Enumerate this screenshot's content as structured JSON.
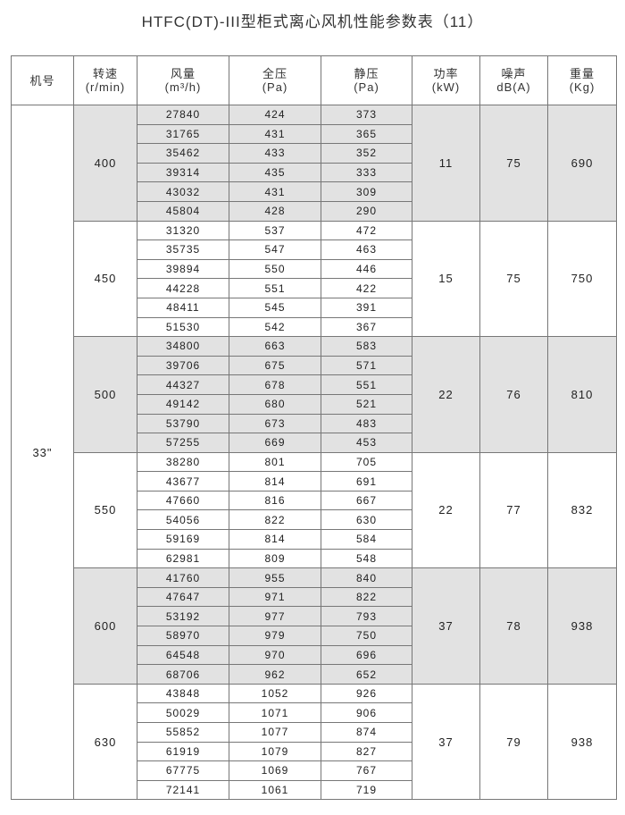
{
  "title": "HTFC(DT)-III型柜式离心风机性能参数表（11）",
  "headers": [
    {
      "l1": "机号",
      "l2": ""
    },
    {
      "l1": "转速",
      "l2": "(r/min)"
    },
    {
      "l1": "风量",
      "l2": "(m³/h)"
    },
    {
      "l1": "全压",
      "l2": "(Pa)"
    },
    {
      "l1": "静压",
      "l2": "(Pa)"
    },
    {
      "l1": "功率",
      "l2": "(kW)"
    },
    {
      "l1": "噪声",
      "l2": "dB(A)"
    },
    {
      "l1": "重量",
      "l2": "(Kg)"
    }
  ],
  "model": "33\"",
  "shade_color": "#e2e2e2",
  "groups": [
    {
      "speed": "400",
      "power": "11",
      "noise": "75",
      "weight": "690",
      "shaded": true,
      "rows": [
        [
          "27840",
          "424",
          "373"
        ],
        [
          "31765",
          "431",
          "365"
        ],
        [
          "35462",
          "433",
          "352"
        ],
        [
          "39314",
          "435",
          "333"
        ],
        [
          "43032",
          "431",
          "309"
        ],
        [
          "45804",
          "428",
          "290"
        ]
      ]
    },
    {
      "speed": "450",
      "power": "15",
      "noise": "75",
      "weight": "750",
      "shaded": false,
      "rows": [
        [
          "31320",
          "537",
          "472"
        ],
        [
          "35735",
          "547",
          "463"
        ],
        [
          "39894",
          "550",
          "446"
        ],
        [
          "44228",
          "551",
          "422"
        ],
        [
          "48411",
          "545",
          "391"
        ],
        [
          "51530",
          "542",
          "367"
        ]
      ]
    },
    {
      "speed": "500",
      "power": "22",
      "noise": "76",
      "weight": "810",
      "shaded": true,
      "rows": [
        [
          "34800",
          "663",
          "583"
        ],
        [
          "39706",
          "675",
          "571"
        ],
        [
          "44327",
          "678",
          "551"
        ],
        [
          "49142",
          "680",
          "521"
        ],
        [
          "53790",
          "673",
          "483"
        ],
        [
          "57255",
          "669",
          "453"
        ]
      ]
    },
    {
      "speed": "550",
      "power": "22",
      "noise": "77",
      "weight": "832",
      "shaded": false,
      "rows": [
        [
          "38280",
          "801",
          "705"
        ],
        [
          "43677",
          "814",
          "691"
        ],
        [
          "47660",
          "816",
          "667"
        ],
        [
          "54056",
          "822",
          "630"
        ],
        [
          "59169",
          "814",
          "584"
        ],
        [
          "62981",
          "809",
          "548"
        ]
      ]
    },
    {
      "speed": "600",
      "power": "37",
      "noise": "78",
      "weight": "938",
      "shaded": true,
      "rows": [
        [
          "41760",
          "955",
          "840"
        ],
        [
          "47647",
          "971",
          "822"
        ],
        [
          "53192",
          "977",
          "793"
        ],
        [
          "58970",
          "979",
          "750"
        ],
        [
          "64548",
          "970",
          "696"
        ],
        [
          "68706",
          "962",
          "652"
        ]
      ]
    },
    {
      "speed": "630",
      "power": "37",
      "noise": "79",
      "weight": "938",
      "shaded": false,
      "rows": [
        [
          "43848",
          "1052",
          "926"
        ],
        [
          "50029",
          "1071",
          "906"
        ],
        [
          "55852",
          "1077",
          "874"
        ],
        [
          "61919",
          "1079",
          "827"
        ],
        [
          "67775",
          "1069",
          "767"
        ],
        [
          "72141",
          "1061",
          "719"
        ]
      ]
    }
  ]
}
